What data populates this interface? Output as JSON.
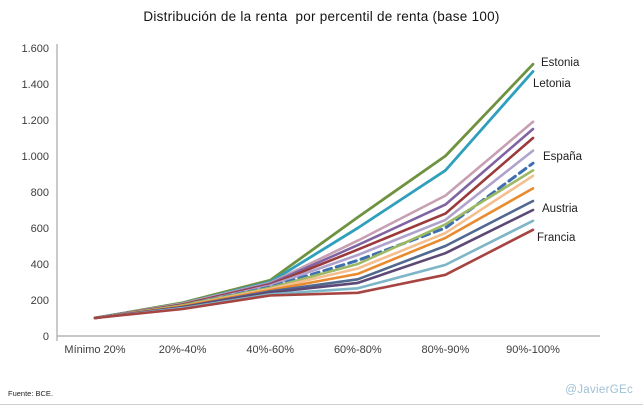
{
  "title": "Distribución de la renta  por percentil de renta (base 100)",
  "footer": {
    "source": "Fuente: BCE.",
    "credit": "@JavierGEc",
    "credit_color": "#9FC1D6"
  },
  "chart_data": {
    "type": "line",
    "title": "Distribución de la renta por percentil de renta (base 100)",
    "xlabel": "",
    "ylabel": "",
    "ylim": [
      0,
      1600
    ],
    "grid": false,
    "legend_position": "direct-labels-right",
    "axis_color": "#A6A6A6",
    "tick_label_color": "#3D3D3D",
    "categories": [
      "Mínimo 20%",
      "20%-40%",
      "40%-60%",
      "60%-80%",
      "80%-90%",
      "90%-100%"
    ],
    "y_ticks": [
      {
        "value": 0,
        "label": "0"
      },
      {
        "value": 200,
        "label": "200"
      },
      {
        "value": 400,
        "label": "400"
      },
      {
        "value": 600,
        "label": "600"
      },
      {
        "value": 800,
        "label": "800"
      },
      {
        "value": 1000,
        "label": "1.000"
      },
      {
        "value": 1200,
        "label": "1.200"
      },
      {
        "value": 1400,
        "label": "1.400"
      },
      {
        "value": 1600,
        "label": "1.600"
      }
    ],
    "series": [
      {
        "name": "Estonia",
        "color": "#6F9240",
        "dash": false,
        "width": 2.8,
        "values": [
          100,
          185,
          310,
          660,
          1000,
          1510
        ]
      },
      {
        "name": "Letonia",
        "color": "#2FA0BC",
        "dash": false,
        "width": 2.8,
        "values": [
          100,
          180,
          300,
          600,
          920,
          1470
        ]
      },
      {
        "name": "",
        "color": "#C79FB2",
        "dash": false,
        "width": 2.6,
        "values": [
          100,
          180,
          295,
          530,
          780,
          1190
        ]
      },
      {
        "name": "",
        "color": "#8064A2",
        "dash": false,
        "width": 2.6,
        "values": [
          100,
          175,
          290,
          505,
          730,
          1150
        ]
      },
      {
        "name": "",
        "color": "#9B3A3A",
        "dash": false,
        "width": 2.6,
        "values": [
          100,
          175,
          285,
          480,
          680,
          1100
        ]
      },
      {
        "name": "",
        "color": "#AFA3CD",
        "dash": false,
        "width": 2.6,
        "values": [
          100,
          170,
          280,
          450,
          645,
          1030
        ]
      },
      {
        "name": "España",
        "color": "#3E6FB0",
        "dash": true,
        "width": 3.0,
        "values": [
          100,
          170,
          272,
          420,
          600,
          960
        ]
      },
      {
        "name": "",
        "color": "#9DB964",
        "dash": false,
        "width": 2.6,
        "values": [
          100,
          170,
          268,
          400,
          620,
          920
        ]
      },
      {
        "name": "",
        "color": "#F5BE8E",
        "dash": false,
        "width": 2.6,
        "values": [
          100,
          165,
          262,
          375,
          572,
          890
        ]
      },
      {
        "name": "",
        "color": "#E98A2E",
        "dash": false,
        "width": 2.6,
        "values": [
          100,
          165,
          255,
          345,
          545,
          820
        ]
      },
      {
        "name": "",
        "color": "#51688F",
        "dash": false,
        "width": 2.6,
        "values": [
          100,
          160,
          248,
          315,
          500,
          750
        ]
      },
      {
        "name": "Austria",
        "color": "#5C4975",
        "dash": false,
        "width": 2.6,
        "values": [
          100,
          160,
          242,
          295,
          460,
          700
        ]
      },
      {
        "name": "",
        "color": "#7DB6C7",
        "dash": false,
        "width": 2.6,
        "values": [
          100,
          155,
          232,
          265,
          395,
          640
        ]
      },
      {
        "name": "Francia",
        "color": "#A64441",
        "dash": false,
        "width": 2.6,
        "values": [
          100,
          150,
          225,
          240,
          340,
          590
        ]
      }
    ],
    "annotations": [
      {
        "text": "Estonia",
        "series_index": 0
      },
      {
        "text": "Letonia",
        "series_index": 1
      },
      {
        "text": "España",
        "series_index": 6
      },
      {
        "text": "Austria",
        "series_index": 11
      },
      {
        "text": "Francia",
        "series_index": 13
      }
    ]
  }
}
